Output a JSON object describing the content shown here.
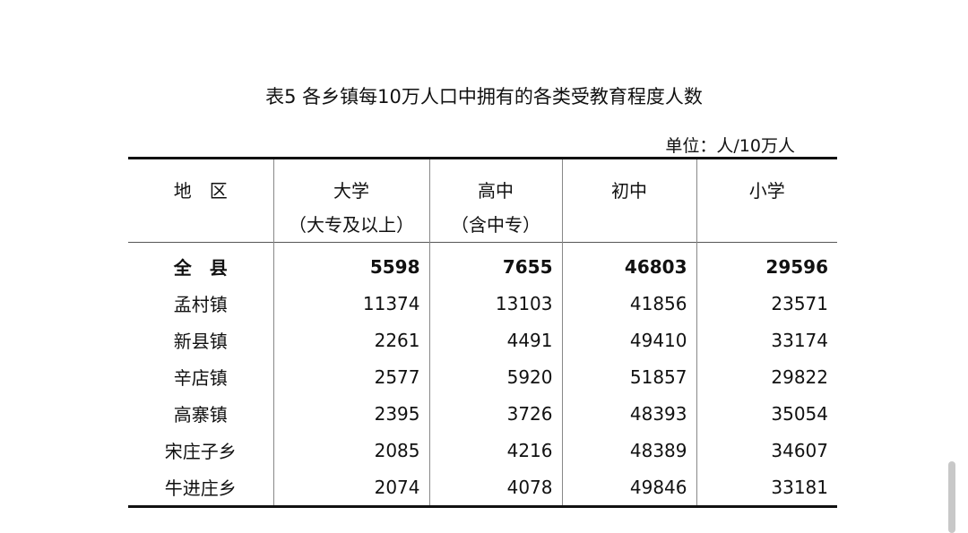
{
  "title": "表5  各乡镇每10万人口中拥有的各类受教育程度人数",
  "unit": "单位：人/10万人",
  "columns": [
    {
      "line1": "地　区",
      "line2": ""
    },
    {
      "line1": "大学",
      "line2": "（大专及以上）"
    },
    {
      "line1": "高中",
      "line2": "（含中专）"
    },
    {
      "line1": "初中",
      "line2": ""
    },
    {
      "line1": "小学",
      "line2": ""
    }
  ],
  "rows": [
    [
      "全　县",
      "5598",
      "7655",
      "46803",
      "29596"
    ],
    [
      "孟村镇",
      "11374",
      "13103",
      "41856",
      "23571"
    ],
    [
      "新县镇",
      "2261",
      "4491",
      "49410",
      "33174"
    ],
    [
      "辛店镇",
      "2577",
      "5920",
      "51857",
      "29822"
    ],
    [
      "高寨镇",
      "2395",
      "3726",
      "48393",
      "35054"
    ],
    [
      "宋庄子乡",
      "2085",
      "4216",
      "48389",
      "34607"
    ],
    [
      "牛进庄乡",
      "2074",
      "4078",
      "49846",
      "33181"
    ]
  ]
}
